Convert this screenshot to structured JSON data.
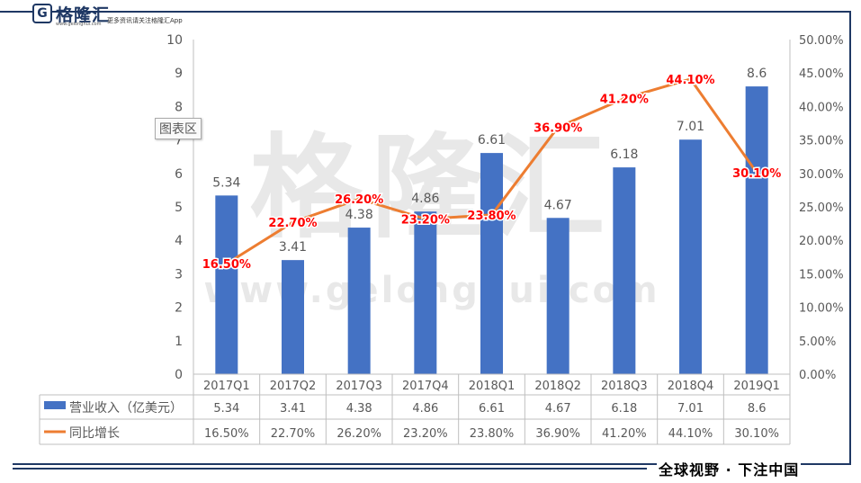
{
  "header": {
    "logo_letter": "G",
    "logo_name": "格隆汇",
    "logo_url": "www.gelonghui.com",
    "tagline": "更多资讯请关注格隆汇App"
  },
  "watermark": {
    "brand": "格隆汇",
    "url": "www.gelonghui.com"
  },
  "tooltip": "图表区",
  "footer": {
    "slogan": "全球视野 · 下注中国"
  },
  "colors": {
    "bar": "#4472c4",
    "line": "#ed7d31",
    "line_label": "#ff0000",
    "frame": "#1f3864"
  },
  "chart_data": {
    "type": "bar",
    "categories": [
      "2017Q1",
      "2017Q2",
      "2017Q3",
      "2017Q4",
      "2018Q1",
      "2018Q2",
      "2018Q3",
      "2018Q4",
      "2019Q1"
    ],
    "series": [
      {
        "name": "营业收入（亿美元）",
        "type": "bar",
        "axis": "left",
        "values": [
          5.34,
          3.41,
          4.38,
          4.86,
          6.61,
          4.67,
          6.18,
          7.01,
          8.6
        ],
        "labels": [
          "5.34",
          "3.41",
          "4.38",
          "4.86",
          "6.61",
          "4.67",
          "6.18",
          "7.01",
          "8.6"
        ]
      },
      {
        "name": "同比增长",
        "type": "line",
        "axis": "right",
        "values": [
          16.5,
          22.7,
          26.2,
          23.2,
          23.8,
          36.9,
          41.2,
          44.1,
          30.1
        ],
        "labels": [
          "16.50%",
          "22.70%",
          "26.20%",
          "23.20%",
          "23.80%",
          "36.90%",
          "41.20%",
          "44.10%",
          "30.10%"
        ]
      }
    ],
    "y_left": {
      "min": 0,
      "max": 10,
      "ticks": [
        "0",
        "1",
        "2",
        "3",
        "4",
        "5",
        "6",
        "7",
        "8",
        "9",
        "10"
      ]
    },
    "y_right": {
      "min": 0,
      "max": 50,
      "ticks": [
        "0.00%",
        "5.00%",
        "10.00%",
        "15.00%",
        "20.00%",
        "25.00%",
        "30.00%",
        "35.00%",
        "40.00%",
        "45.00%",
        "50.00%"
      ]
    },
    "data_table": true,
    "grid": false
  }
}
